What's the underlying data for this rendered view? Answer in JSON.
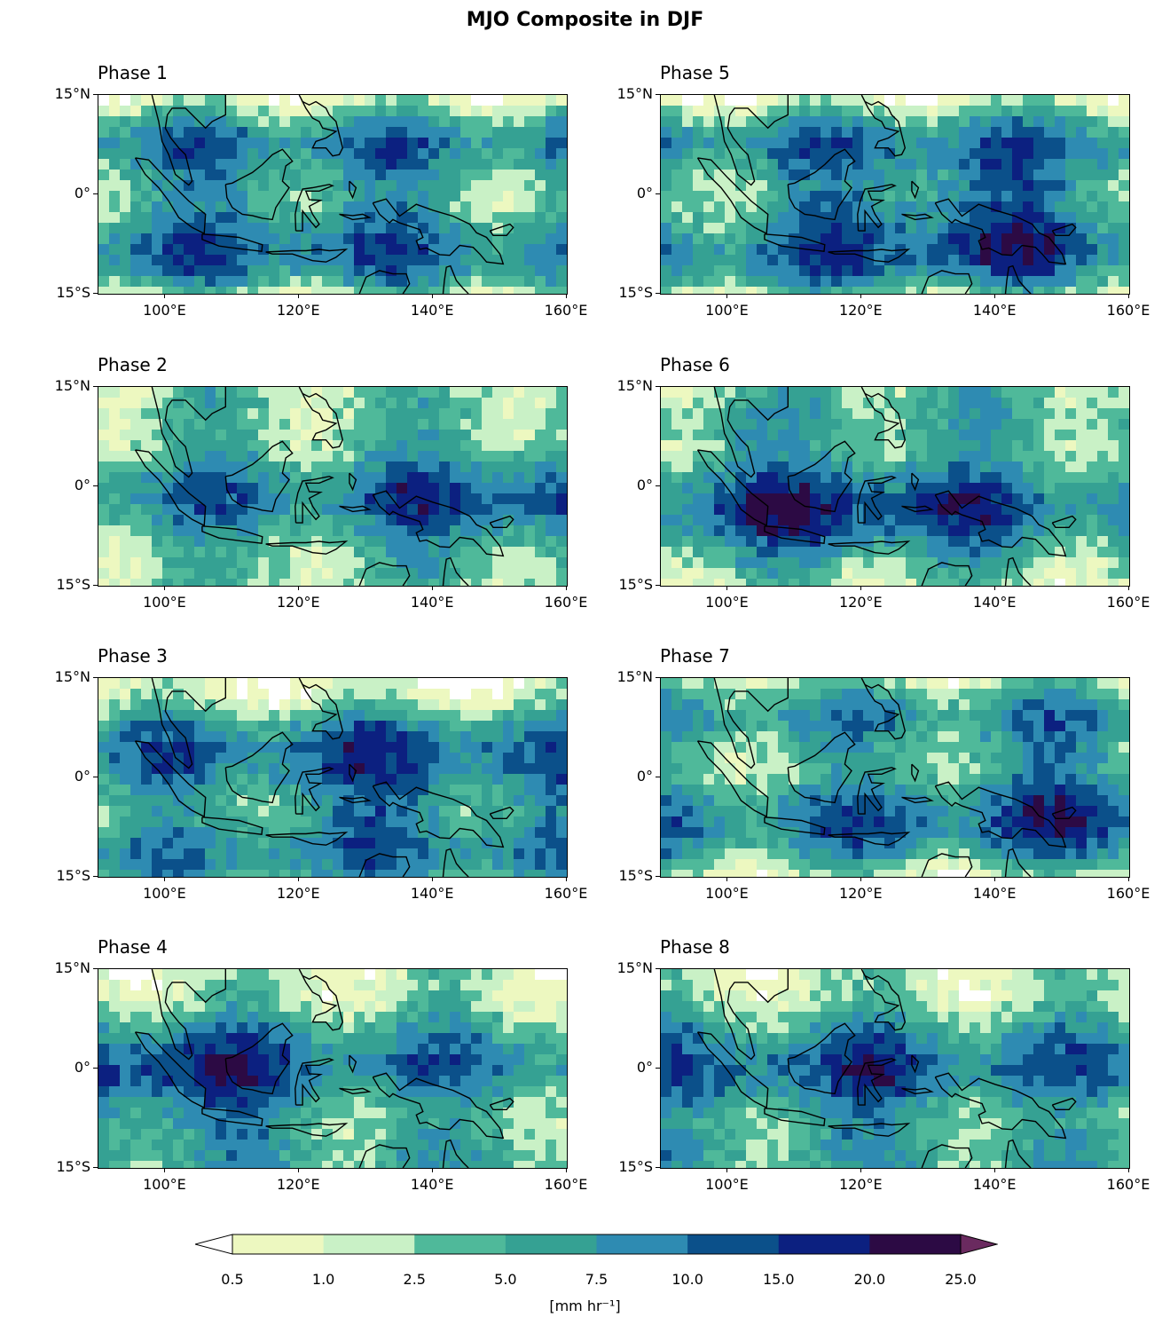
{
  "figure": {
    "title": "MJO Composite in DJF"
  },
  "panels": [
    {
      "title": "Phase 1",
      "intensity": 0.35,
      "seed": 11,
      "col": 0,
      "row": 0
    },
    {
      "title": "Phase 2",
      "intensity": 0.45,
      "seed": 23,
      "col": 0,
      "row": 1
    },
    {
      "title": "Phase 3",
      "intensity": 0.6,
      "seed": 37,
      "col": 0,
      "row": 2
    },
    {
      "title": "Phase 4",
      "intensity": 0.7,
      "seed": 41,
      "col": 0,
      "row": 3
    },
    {
      "title": "Phase 5",
      "intensity": 0.75,
      "seed": 53,
      "col": 1,
      "row": 0
    },
    {
      "title": "Phase 6",
      "intensity": 0.65,
      "seed": 67,
      "col": 1,
      "row": 1
    },
    {
      "title": "Phase 7",
      "intensity": 0.5,
      "seed": 71,
      "col": 1,
      "row": 2
    },
    {
      "title": "Phase 8",
      "intensity": 0.4,
      "seed": 83,
      "col": 1,
      "row": 3
    }
  ],
  "axes": {
    "lat_labels": [
      "15°N",
      "0°",
      "15°S"
    ],
    "lat_values": [
      15,
      0,
      -15
    ],
    "lon_labels": [
      "100°E",
      "120°E",
      "140°E",
      "160°E"
    ],
    "lon_values": [
      100,
      120,
      140,
      160
    ],
    "lon_range": [
      90,
      160
    ],
    "lat_range": [
      -15,
      15
    ]
  },
  "colorbar": {
    "levels": [
      "0.5",
      "1.0",
      "2.5",
      "5.0",
      "7.5",
      "10.0",
      "15.0",
      "20.0",
      "25.0"
    ],
    "colors": [
      "#edf8c0",
      "#c9f1c6",
      "#4fb99a",
      "#35a193",
      "#2e8bb2",
      "#0b508a",
      "#0c2080",
      "#2c0a44"
    ],
    "under_color": "#ffffff",
    "over_color": "#6a2a5f",
    "unit_label": "[mm hr⁻¹]"
  }
}
